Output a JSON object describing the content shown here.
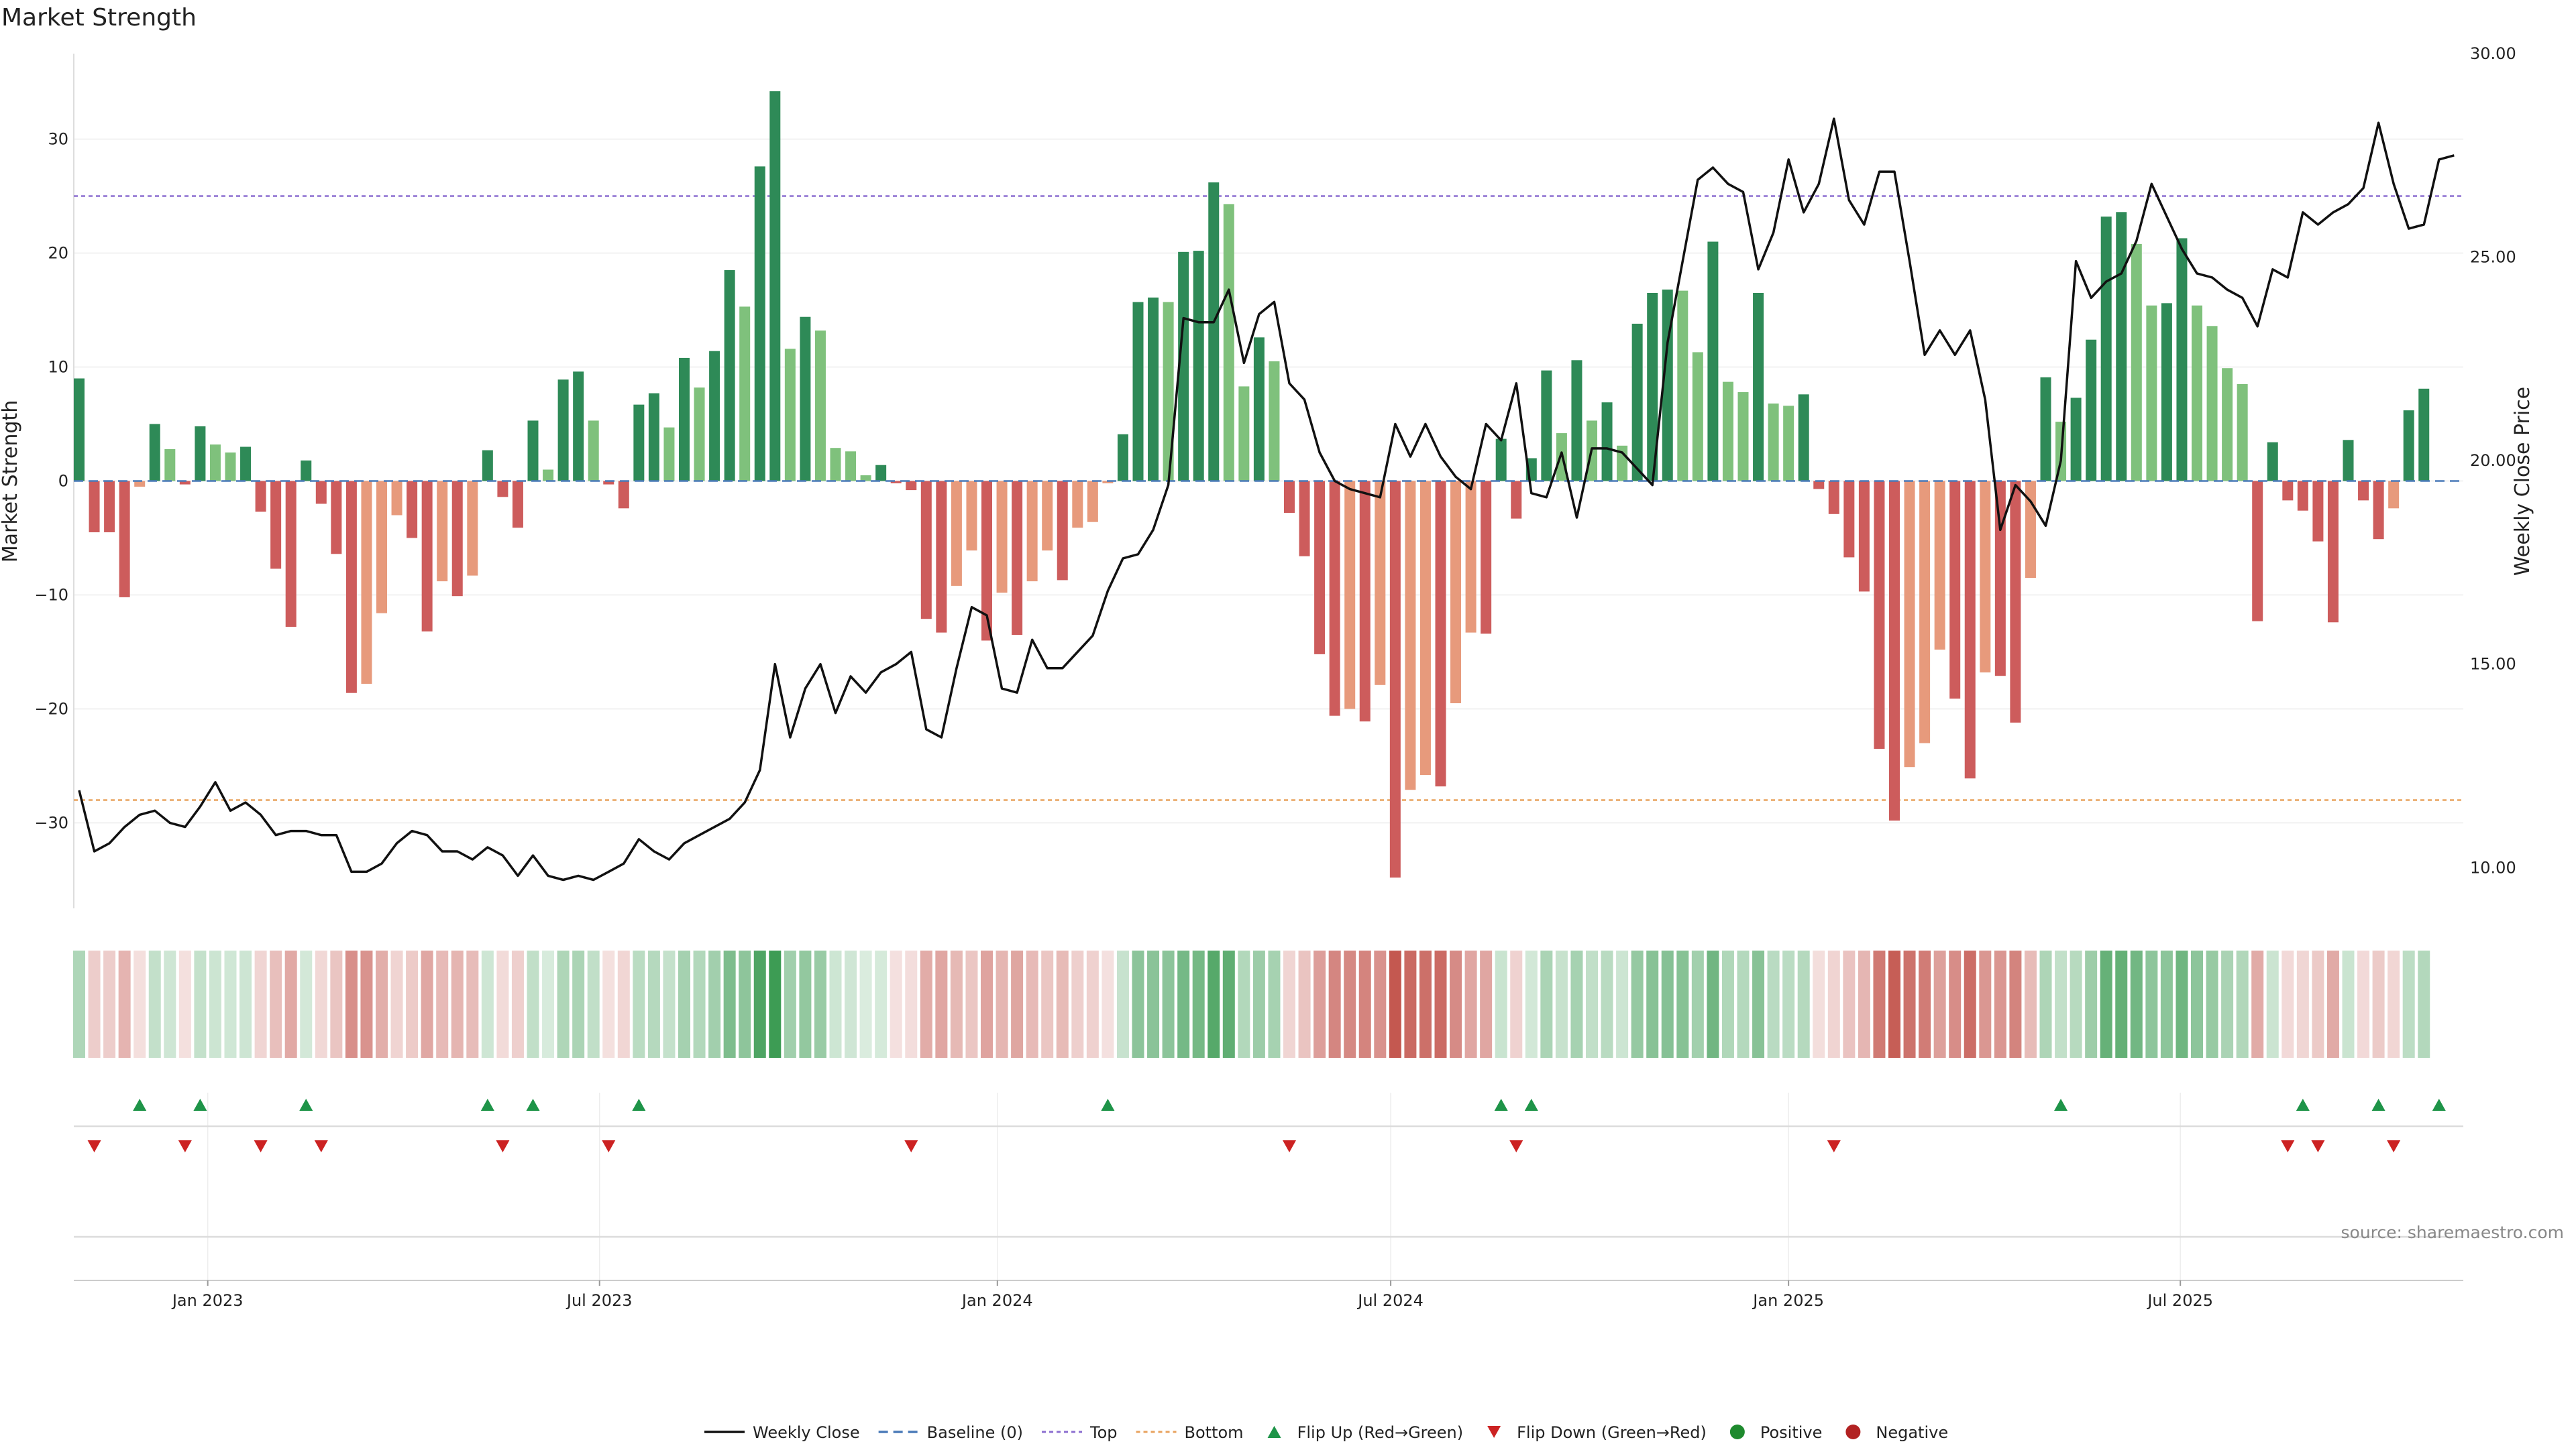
{
  "chart_data": {
    "type": "bar+line",
    "title": "Market Strength",
    "ylabel_left": "Market Strength",
    "ylabel_right": "Weekly Close Price",
    "ylim_left": [
      -37.5,
      37.5
    ],
    "ylim_right": [
      9.0,
      30.0
    ],
    "yticks_left": [
      -30,
      -20,
      -10,
      0,
      10,
      20,
      30
    ],
    "yticks_left_labels": [
      "−30",
      "−20",
      "−10",
      "0",
      "10",
      "20",
      "30"
    ],
    "yticks_right": [
      10,
      15,
      20,
      25,
      30
    ],
    "yticks_right_labels": [
      "10.00",
      "15.00",
      "20.00",
      "25.00",
      "30.00"
    ],
    "top_level": 25,
    "bottom_level": -28,
    "xtick_labels": [
      "Jan 2023",
      "Jul 2023",
      "Jan 2024",
      "Jul 2024",
      "Jan 2025",
      "Jul 2025"
    ],
    "xtick_weeks": [
      8.5,
      34.4,
      60.7,
      86.7,
      113.0,
      138.9
    ],
    "strength": [
      9.0,
      -4.5,
      -4.5,
      -10.2,
      -0.5,
      5.0,
      2.8,
      -0.3,
      4.8,
      3.2,
      2.5,
      3.0,
      -2.7,
      -7.7,
      -12.8,
      1.8,
      -2.0,
      -6.4,
      -18.6,
      -17.8,
      -11.6,
      -3.0,
      -5.0,
      -13.2,
      -8.8,
      -10.1,
      -8.3,
      2.7,
      -1.4,
      -4.1,
      5.3,
      1.0,
      8.9,
      9.6,
      5.3,
      -0.3,
      -2.4,
      6.7,
      7.7,
      4.7,
      10.8,
      8.2,
      11.4,
      18.5,
      15.3,
      27.6,
      34.2,
      11.6,
      14.4,
      13.2,
      2.9,
      2.6,
      0.5,
      1.4,
      -0.2,
      -0.8,
      -12.1,
      -13.3,
      -9.2,
      -6.1,
      -14.0,
      -9.8,
      -13.5,
      -8.8,
      -6.1,
      -8.7,
      -4.1,
      -3.6,
      -0.2,
      4.1,
      15.7,
      16.1,
      15.7,
      20.1,
      20.2,
      26.2,
      24.3,
      8.3,
      12.6,
      10.5,
      -2.8,
      -6.6,
      -15.2,
      -20.6,
      -20.0,
      -21.1,
      -17.9,
      -34.8,
      -27.1,
      -25.8,
      -26.8,
      -19.5,
      -13.3,
      -13.4,
      3.7,
      -3.3,
      2.0,
      9.7,
      4.2,
      10.6,
      5.3,
      6.9,
      3.1,
      13.8,
      16.5,
      16.8,
      16.7,
      11.3,
      21.0,
      8.7,
      7.8,
      16.5,
      6.8,
      6.6,
      7.6,
      -0.7,
      -2.9,
      -6.7,
      -9.7,
      -23.5,
      -29.8,
      -25.1,
      -23.0,
      -14.8,
      -19.1,
      -26.1,
      -16.8,
      -17.1,
      -21.2,
      -8.5,
      9.1,
      5.2,
      7.3,
      12.4,
      23.2,
      23.6,
      20.8,
      15.4,
      15.6,
      21.3,
      15.4,
      13.6,
      9.9,
      8.5,
      -12.3,
      3.4,
      -1.7,
      -2.6,
      -5.3,
      -12.4,
      3.6,
      -1.7,
      -5.1,
      -2.4,
      6.2,
      8.1
    ],
    "weekly_close": [
      11.9,
      10.4,
      10.6,
      11.0,
      11.3,
      11.4,
      11.1,
      11.0,
      11.5,
      12.1,
      11.4,
      11.6,
      11.3,
      10.8,
      10.9,
      10.9,
      10.8,
      10.8,
      9.9,
      9.9,
      10.1,
      10.6,
      10.9,
      10.8,
      10.4,
      10.4,
      10.2,
      10.5,
      10.3,
      9.8,
      10.3,
      9.8,
      9.7,
      9.8,
      9.7,
      9.9,
      10.1,
      10.7,
      10.4,
      10.2,
      10.6,
      10.8,
      11.0,
      11.2,
      11.6,
      12.4,
      15.0,
      13.2,
      14.4,
      15.0,
      13.8,
      14.7,
      14.3,
      14.8,
      15.0,
      15.3,
      13.4,
      13.2,
      14.9,
      16.4,
      16.2,
      14.4,
      14.3,
      15.6,
      14.9,
      14.9,
      15.3,
      15.7,
      16.8,
      17.6,
      17.7,
      18.3,
      19.4,
      23.5,
      23.4,
      23.4,
      24.2,
      22.4,
      23.6,
      23.9,
      21.9,
      21.5,
      20.2,
      19.5,
      19.3,
      19.2,
      19.1,
      20.9,
      20.1,
      20.9,
      20.1,
      19.6,
      19.3,
      20.9,
      20.5,
      21.9,
      19.2,
      19.1,
      20.2,
      18.6,
      20.3,
      20.3,
      20.2,
      19.8,
      19.4,
      22.9,
      24.9,
      26.9,
      27.2,
      26.8,
      26.6,
      24.7,
      25.6,
      27.4,
      26.1,
      26.8,
      28.4,
      26.4,
      25.8,
      27.1,
      27.1,
      24.9,
      22.6,
      23.2,
      22.6,
      23.2,
      21.5,
      18.3,
      19.4,
      19.0,
      18.4,
      20.0,
      24.9,
      24.0,
      24.4,
      24.6,
      25.4,
      26.8,
      26.0,
      25.2,
      24.6,
      24.5,
      24.2,
      24.0,
      23.3,
      24.7,
      24.5,
      26.1,
      25.8,
      26.1,
      26.3,
      26.7,
      28.3,
      26.8,
      25.7,
      25.8,
      27.4,
      27.5
    ],
    "flip_up_weeks": [
      4,
      8,
      15,
      27,
      30,
      37,
      68,
      94,
      96,
      131,
      147,
      152,
      156
    ],
    "flip_down_weeks": [
      1,
      7,
      12,
      16,
      28,
      35,
      55,
      80,
      95,
      116,
      146,
      148,
      153
    ],
    "legend": [
      "Weekly Close",
      "Baseline (0)",
      "Top",
      "Bottom",
      "Flip Up (Red→Green)",
      "Flip Down (Green→Red)",
      "Positive",
      "Negative"
    ],
    "source": "source: sharemaestro.com",
    "colors": {
      "pos_strong": "#2e8a57",
      "pos_weak": "#7fc17c",
      "neg_strong": "#cd5c5c",
      "neg_weak": "#e79a7c",
      "close_line": "#111111",
      "baseline": "#4a7ab8",
      "top_line": "#8c6fd0",
      "bottom_line": "#e8a35f",
      "flip_up": "#1e9448",
      "flip_down": "#cc2222",
      "positive": "#1e8a2e",
      "negative": "#b22222"
    }
  }
}
